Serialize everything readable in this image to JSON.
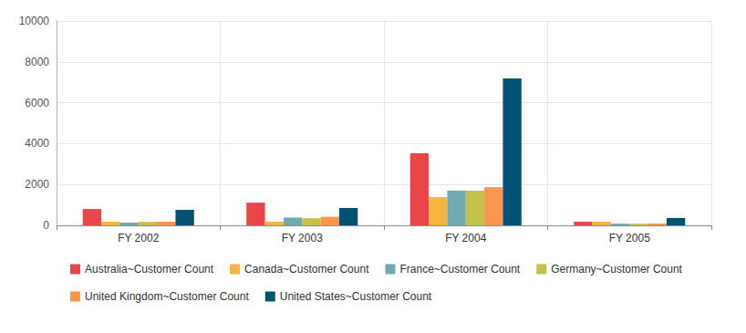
{
  "chart_data": {
    "type": "bar",
    "categories": [
      "FY 2002",
      "FY 2003",
      "FY 2004",
      "FY 2005"
    ],
    "series": [
      {
        "name": "Australia~Customer Count",
        "color": "#e94649",
        "values": [
          800,
          1110,
          3530,
          180
        ]
      },
      {
        "name": "Canada~Customer Count",
        "color": "#f6b53f",
        "values": [
          180,
          180,
          1380,
          180
        ]
      },
      {
        "name": "France~Customer Count",
        "color": "#6faab0",
        "values": [
          130,
          380,
          1700,
          80
        ]
      },
      {
        "name": "Germany~Customer Count",
        "color": "#c4c24a",
        "values": [
          170,
          350,
          1700,
          80
        ]
      },
      {
        "name": "United Kingdom~Customer Count",
        "color": "#fb954f",
        "values": [
          180,
          420,
          1870,
          90
        ]
      },
      {
        "name": "United States~Customer Count",
        "color": "#005274",
        "values": [
          760,
          850,
          7190,
          360
        ]
      }
    ],
    "ylim": [
      0,
      10000
    ],
    "yticks": [
      0,
      2000,
      4000,
      6000,
      8000,
      10000
    ],
    "grid": true,
    "legend": "bottom"
  }
}
